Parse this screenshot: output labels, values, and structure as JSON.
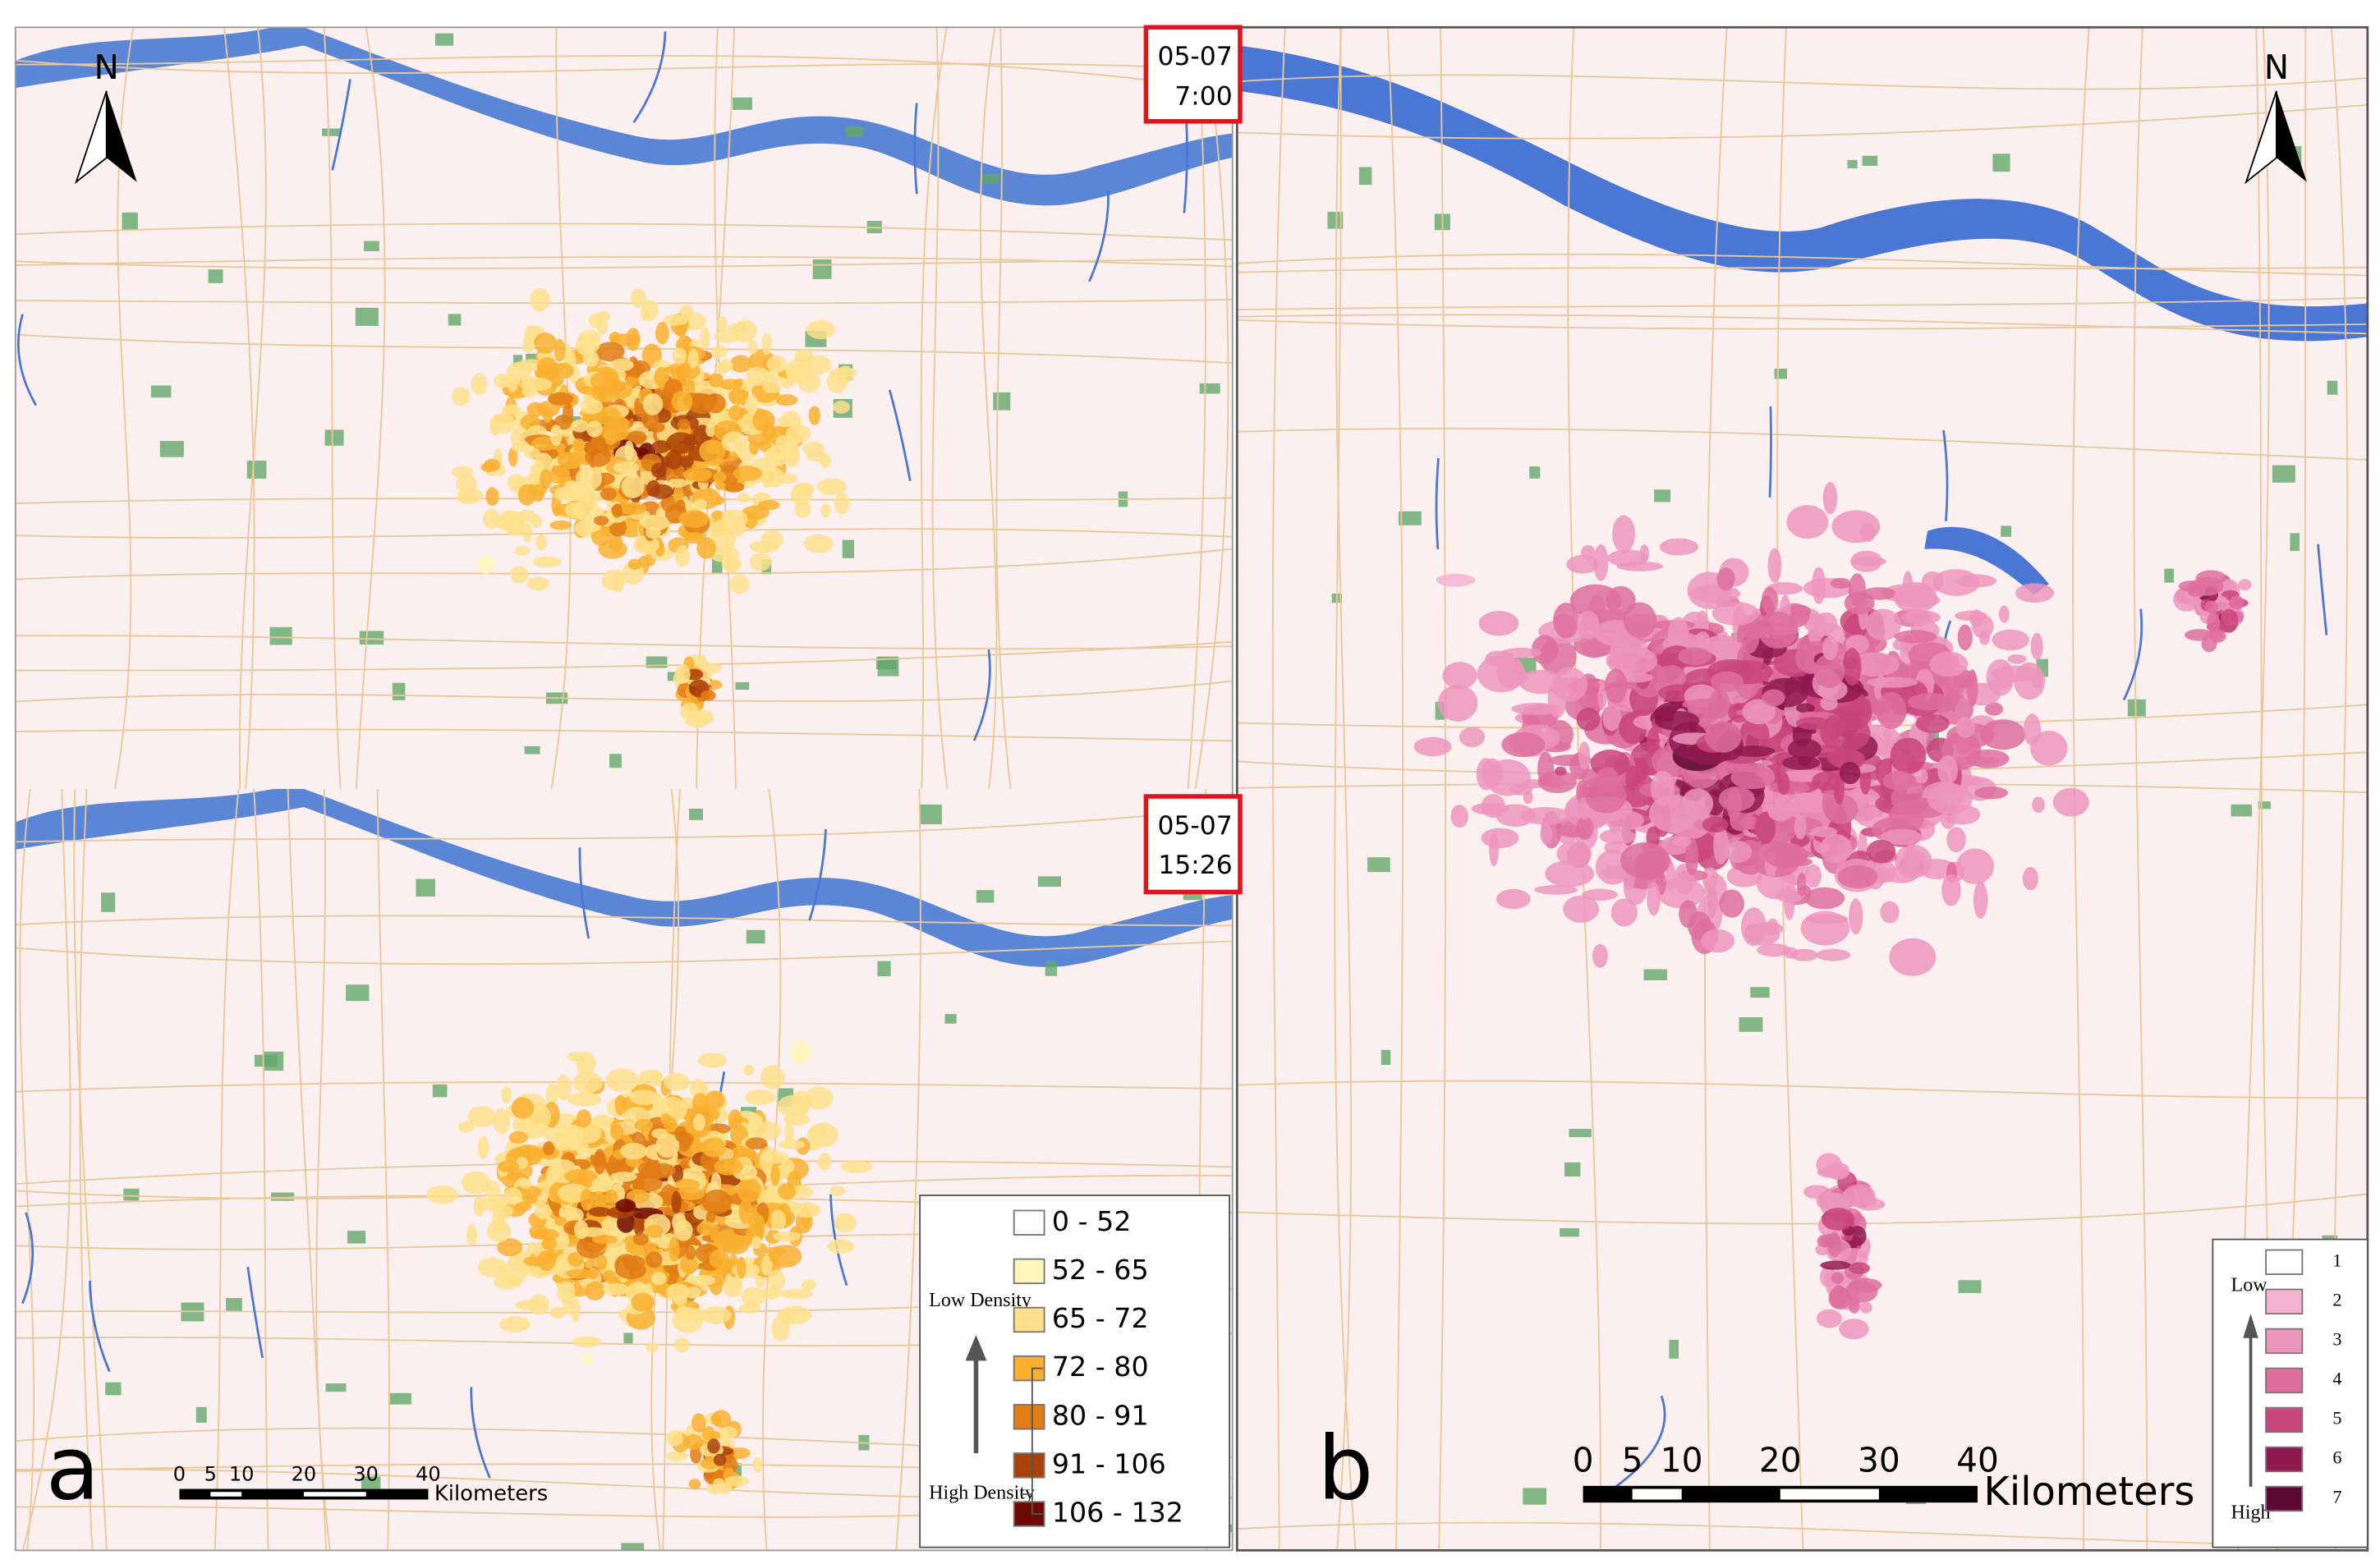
{
  "panel_a": {
    "label": "a",
    "north": "N",
    "times": [
      {
        "date": "05-07",
        "time": "7:00"
      },
      {
        "date": "05-07",
        "time": "15:26"
      }
    ],
    "legend": {
      "low": "Low Density",
      "high": "High Density",
      "classes": [
        {
          "label": "0 - 52",
          "color": "#ffffff"
        },
        {
          "label": "52 - 65",
          "color": "#fef6b9"
        },
        {
          "label": "65 - 72",
          "color": "#fde08c"
        },
        {
          "label": "72 - 80",
          "color": "#f9b030"
        },
        {
          "label": "80 - 91",
          "color": "#e07d15"
        },
        {
          "label": "91 - 106",
          "color": "#a9420a"
        },
        {
          "label": "106 - 132",
          "color": "#6d0a05"
        }
      ]
    },
    "scale": {
      "ticks": [
        0,
        5,
        10,
        20,
        30,
        40
      ],
      "unit": "Kilometers"
    }
  },
  "panel_b": {
    "label": "b",
    "north": "N",
    "legend": {
      "low": "Low",
      "high": "High",
      "classes": [
        {
          "label": "1",
          "color": "#ffffff"
        },
        {
          "label": "2",
          "color": "#f4b3d2"
        },
        {
          "label": "3",
          "color": "#ec95bd"
        },
        {
          "label": "4",
          "color": "#dd6f9e"
        },
        {
          "label": "5",
          "color": "#c9457d"
        },
        {
          "label": "6",
          "color": "#8e1a50"
        },
        {
          "label": "7",
          "color": "#5c0a33"
        }
      ]
    },
    "scale": {
      "ticks": [
        0,
        5,
        10,
        20,
        30,
        40
      ],
      "unit": "Kilometers"
    }
  }
}
